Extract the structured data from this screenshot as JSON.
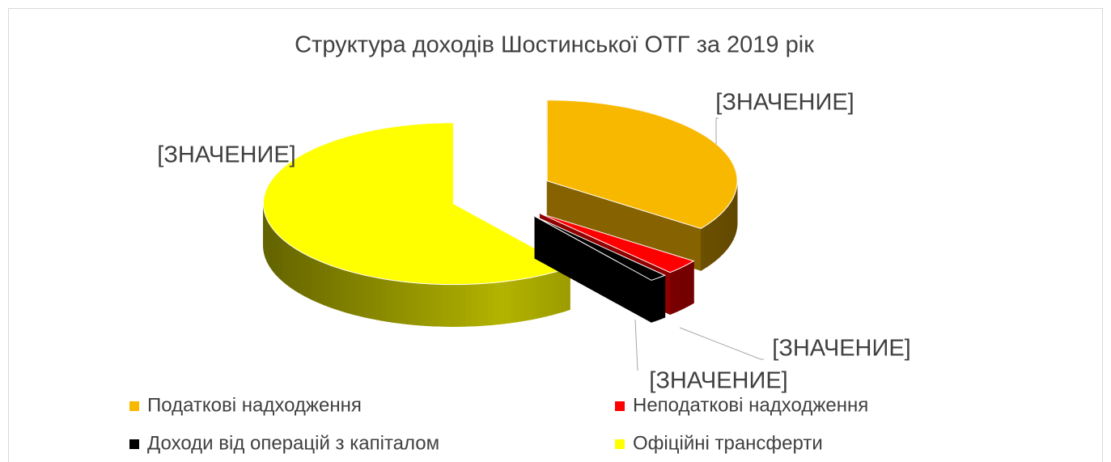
{
  "chart_data": {
    "type": "pie3d",
    "title": "Структура доходів Шостинської ОТГ за 2019 рік",
    "categories": [
      "Податкові надходження",
      "Неподаткові надходження",
      "Доходи від операцій з капіталом",
      "Офіційні трансферти"
    ],
    "values": [
      35,
      3,
      1.5,
      60.5
    ],
    "value_labels": [
      "[ЗНАЧЕНИЕ]",
      "[ЗНАЧЕНИЕ]",
      "[ЗНАЧЕНИЕ]",
      "[ЗНАЧЕНИЕ]"
    ],
    "colors": [
      "#f9b800",
      "#ff0000",
      "#000000",
      "#ffff00"
    ],
    "legend": "bottom"
  }
}
